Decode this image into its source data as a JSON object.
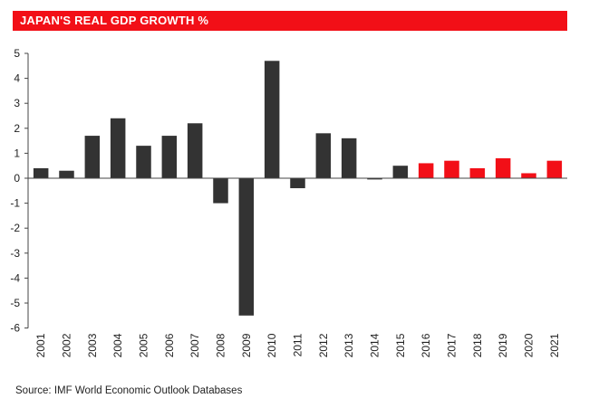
{
  "header": {
    "title": "JAPAN'S REAL GDP GROWTH %"
  },
  "footer": {
    "source": "Source: IMF World Economic Outlook Databases"
  },
  "colors": {
    "actual": "#333333",
    "forecast": "#f20f17",
    "title_bg": "#f20f17"
  },
  "chart_data": {
    "type": "bar",
    "title": "JAPAN'S REAL GDP GROWTH %",
    "xlabel": "",
    "ylabel": "",
    "ylim": [
      -6,
      5
    ],
    "yticks": [
      5,
      4,
      3,
      2,
      1,
      0,
      -1,
      -2,
      -3,
      -4,
      -5,
      -6
    ],
    "grid": false,
    "legend": "none",
    "categories": [
      "2001",
      "2002",
      "2003",
      "2004",
      "2005",
      "2006",
      "2007",
      "2008",
      "2009",
      "2010",
      "2011",
      "2012",
      "2013",
      "2014",
      "2015",
      "2016",
      "2017",
      "2018",
      "2019",
      "2020",
      "2021"
    ],
    "values": [
      0.4,
      0.3,
      1.7,
      2.4,
      1.3,
      1.7,
      2.2,
      -1.0,
      -5.5,
      4.7,
      -0.4,
      1.8,
      1.6,
      -0.05,
      0.5,
      0.6,
      0.7,
      0.4,
      0.8,
      0.2,
      0.7
    ],
    "forecast_from_index": 15
  }
}
